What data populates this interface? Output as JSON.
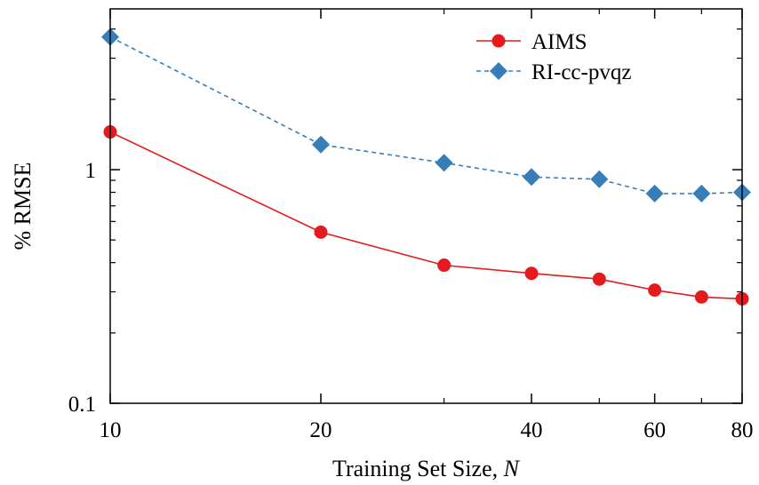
{
  "chart_data": {
    "type": "line",
    "title": "",
    "xlabel": "Training Set Size, ",
    "xlabel_italic": "N",
    "ylabel": "% RMSE",
    "x_scale": "log",
    "y_scale": "log",
    "xlim": [
      10,
      80
    ],
    "ylim": [
      0.1,
      4
    ],
    "x_ticks": [
      10,
      20,
      40,
      60,
      80
    ],
    "x_tick_labels": [
      "10",
      "20",
      "40",
      "60",
      "80"
    ],
    "y_ticks": [
      0.1,
      1
    ],
    "y_tick_labels": [
      "0.1",
      "1"
    ],
    "grid": false,
    "legend_position": "top-right",
    "series": [
      {
        "name": "AIMS",
        "color": "#e41a1c",
        "line_style": "solid",
        "marker": "circle",
        "x": [
          10,
          20,
          30,
          40,
          50,
          60,
          70,
          80
        ],
        "y": [
          1.45,
          0.54,
          0.39,
          0.36,
          0.34,
          0.305,
          0.285,
          0.28
        ]
      },
      {
        "name": "RI-cc-pvqz",
        "color": "#377eb8",
        "line_style": "dashed",
        "marker": "diamond",
        "x": [
          10,
          20,
          30,
          40,
          50,
          60,
          70,
          80
        ],
        "y": [
          3.7,
          1.28,
          1.07,
          0.93,
          0.91,
          0.79,
          0.79,
          0.8
        ]
      }
    ]
  }
}
